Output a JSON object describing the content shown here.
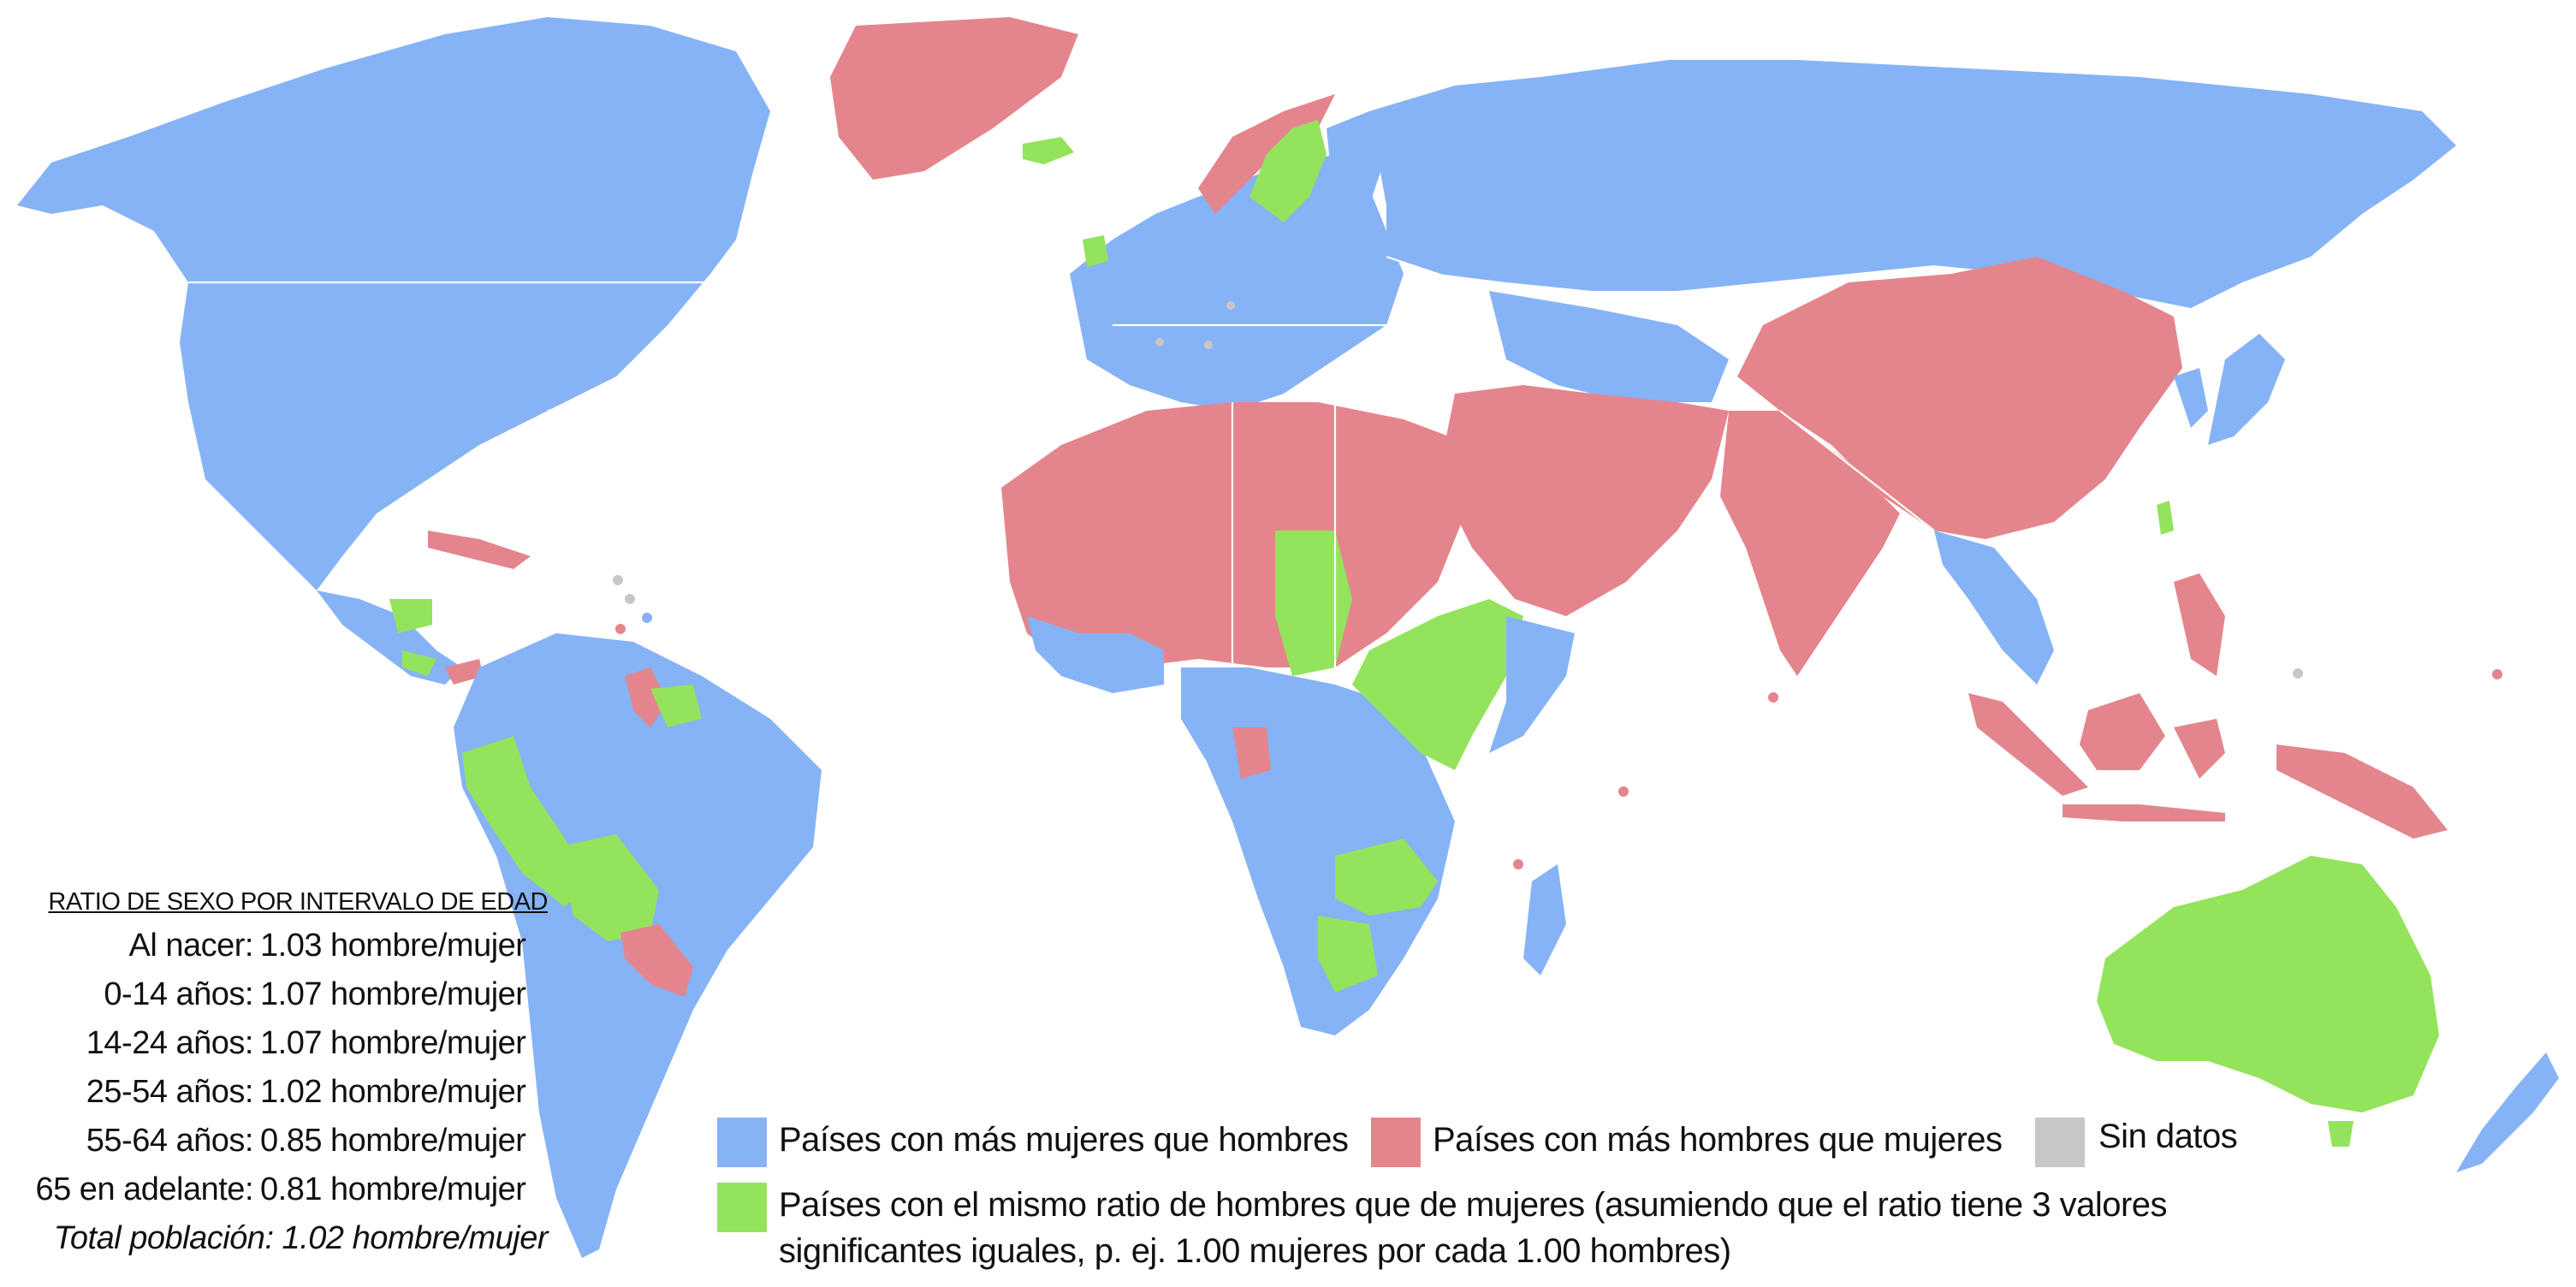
{
  "colors": {
    "more_women": "#86b3f5",
    "more_men": "#e4858d",
    "equal": "#94e35c",
    "no_data": "#c7c7c7"
  },
  "stats": {
    "heading": "RATIO DE SEXO POR INTERVALO DE EDAD",
    "rows": [
      {
        "label": "Al nacer:",
        "value": "1.03 hombre/mujer"
      },
      {
        "label": "0-14 años:",
        "value": "1.07 hombre/mujer"
      },
      {
        "label": "14-24 años:",
        "value": "1.07 hombre/mujer"
      },
      {
        "label": "25-54 años:",
        "value": "1.02 hombre/mujer"
      },
      {
        "label": "55-64 años:",
        "value": "0.85 hombre/mujer"
      },
      {
        "label": "65 en adelante:",
        "value": "0.81 hombre/mujer"
      }
    ],
    "total": "Total población: 1.02 hombre/mujer"
  },
  "legend": {
    "more_women": "Países con más mujeres que hombres",
    "more_men": "Países con más hombres que mujeres",
    "no_data": "Sin datos",
    "equal_line1": "Países con el mismo ratio de hombres que de mujeres (asumiendo que el ratio tiene 3 valores",
    "equal_line2": "significantes iguales, p. ej. 1.00 mujeres por cada 1.00 hombres)"
  }
}
